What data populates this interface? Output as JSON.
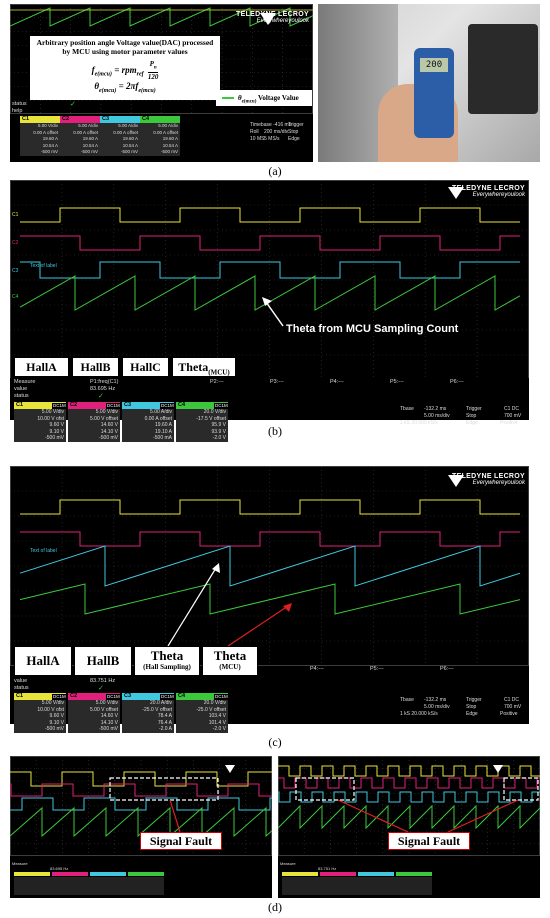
{
  "labels": {
    "a": "(a)",
    "b": "(b)",
    "c": "(c)",
    "d": "(d)"
  },
  "brand": {
    "name": "TELEDYNE LECROY",
    "tag": "Everywhereyoulook"
  },
  "colors": {
    "yellow": "#e8e43a",
    "magenta": "#e0207a",
    "cyan": "#3fc8e0",
    "green": "#3cc83c",
    "bg": "#000000",
    "grid": "#3a3a3a"
  },
  "panel_a": {
    "formula_title": "Arbitrary position angle Voltage value(DAC) processed by MCU using motor parameter values",
    "formula_1_lhs": "f",
    "formula_1_sub": "e(mcu)",
    "formula_1_rhs": "= rpm",
    "formula_1_rhs_sub": "ref",
    "formula_1_frac_num": "P",
    "formula_1_frac_num_sub": "n",
    "formula_1_frac_den": "120",
    "formula_2_lhs": "θ",
    "formula_2_sub": "e(mcu)",
    "formula_2_rhs": "= 2πf",
    "formula_2_rhs_sub": "e(mcu)",
    "legend_symbol": "θ",
    "legend_sub": "e(mcu)",
    "legend_text": "Voltage Value",
    "status_rows": [
      "status",
      "help"
    ],
    "ch_heads": [
      "C1",
      "C2",
      "C3",
      "C4"
    ],
    "ch_values": [
      [
        "5.00 V/div",
        "0.00 A offset",
        "19.60 A",
        "10.54 A",
        "-500 mV"
      ],
      [
        "5.00 A/div",
        "0.00 A offset",
        "19.60 A",
        "10.54 A",
        "-500 mV"
      ],
      [
        "5.00 A/div",
        "0.00 A offset",
        "19.60 A",
        "10.54 A",
        "-500 mV"
      ],
      [
        "5.00 A/div",
        "0.00 A offset",
        "19.60 A",
        "10.54 A",
        "-500 mV"
      ]
    ],
    "timebase": [
      "Timebase -416 ms",
      "Roll",
      "200 ms/div",
      "10 MS",
      "5 MS/s"
    ],
    "trigger": [
      "Trigger",
      "Stop",
      "Edge",
      "20.00 A",
      "Positive"
    ],
    "photo_display": "200"
  },
  "panel_b": {
    "annotation": "Theta from MCU Sampling Count",
    "boxes": [
      "HallA",
      "HallB",
      "HallC",
      "Theta"
    ],
    "theta_sub": "(MCU)",
    "channels": [
      "C1",
      "C2",
      "C3",
      "C4"
    ],
    "measure": {
      "label": "Measure",
      "param": "P1:freq(C1)",
      "value_label": "value",
      "value": "83.695 Hz",
      "status_label": "status"
    },
    "params": [
      "P2:---",
      "P3:---",
      "P4:---",
      "P5:---",
      "P6:---"
    ],
    "ch_heads": [
      "C1",
      "C2",
      "C3",
      "C4"
    ],
    "ch_tags": [
      "DC1M",
      "DC1M",
      "DC1M",
      "DC1M"
    ],
    "ch_values": [
      [
        "5.00 V/div",
        "10.00 V ofst",
        "9.60 V",
        "9.10 V",
        "-500 mV"
      ],
      [
        "5.00 V/div",
        "5.00 V offset",
        "14.60 V",
        "14.10 V",
        "-500 mV"
      ],
      [
        "5.00 A/div",
        "0.00 A offset",
        "19.60 A",
        "19.10 A",
        "-500 mA"
      ],
      [
        "20.0 V/div",
        "-17.5 V offset",
        "95.9 V",
        "93.9 V",
        "-2.0 V"
      ]
    ],
    "row_marks": [
      "----",
      "----",
      "Δy"
    ],
    "tbase": {
      "label": "Tbase",
      "value": "-132.2 ms",
      "div": "5.00 ms/div",
      "rate": "1 kS   20.000 kS/s"
    },
    "trigger": {
      "label": "Trigger",
      "ch": "C1 DC",
      "mode": "Stop",
      "level": "700 mV",
      "type": "Edge",
      "slope": "Positive"
    },
    "label_text": "Text of label"
  },
  "panel_c": {
    "boxes": [
      "HallA",
      "HallB",
      "Theta",
      "Theta"
    ],
    "box_subs": [
      "",
      "",
      "(Hall Sampling)",
      "(MCU)"
    ],
    "measure": {
      "value_label": "value",
      "value": "83.751 Hz",
      "status_label": "status"
    },
    "params": [
      "P4:---",
      "P5:---",
      "P6:---"
    ],
    "ch_heads": [
      "C1",
      "C2",
      "C3",
      "C4"
    ],
    "ch_tags": [
      "DC1M",
      "DC1M",
      "DC1M",
      "DC1M"
    ],
    "ch_values": [
      [
        "5.00 V/div",
        "10.00 V ofst",
        "9.60 V",
        "9.10 V",
        "-500 mV"
      ],
      [
        "5.00 V/div",
        "5.00 V offset",
        "14.60 V",
        "14.10 V",
        "-500 mV"
      ],
      [
        "20.0 A/div",
        "-25.0 V offset",
        "78.4 A",
        "76.4 A",
        "-2.0 A"
      ],
      [
        "20.0 V/div",
        "-25.0 V offset",
        "103.4 V",
        "101.4 V",
        "-2.0 V"
      ]
    ],
    "tbase": {
      "label": "Tbase",
      "value": "-132.2 ms",
      "div": "5.00 ms/div",
      "rate": "1 kS   20.000 kS/s"
    },
    "trigger": {
      "label": "Trigger",
      "ch": "C1 DC",
      "mode": "Stop",
      "level": "700 mV",
      "type": "Edge",
      "slope": "Positive"
    },
    "label_text": "Text of label"
  },
  "panel_d": {
    "fault_left": "Signal Fault",
    "fault_right": "Signal Fault",
    "measure_left": {
      "label": "Measure",
      "value": "83.695 Hz"
    },
    "measure_right": {
      "label": "Measure",
      "value": "83.751 Hz"
    }
  }
}
